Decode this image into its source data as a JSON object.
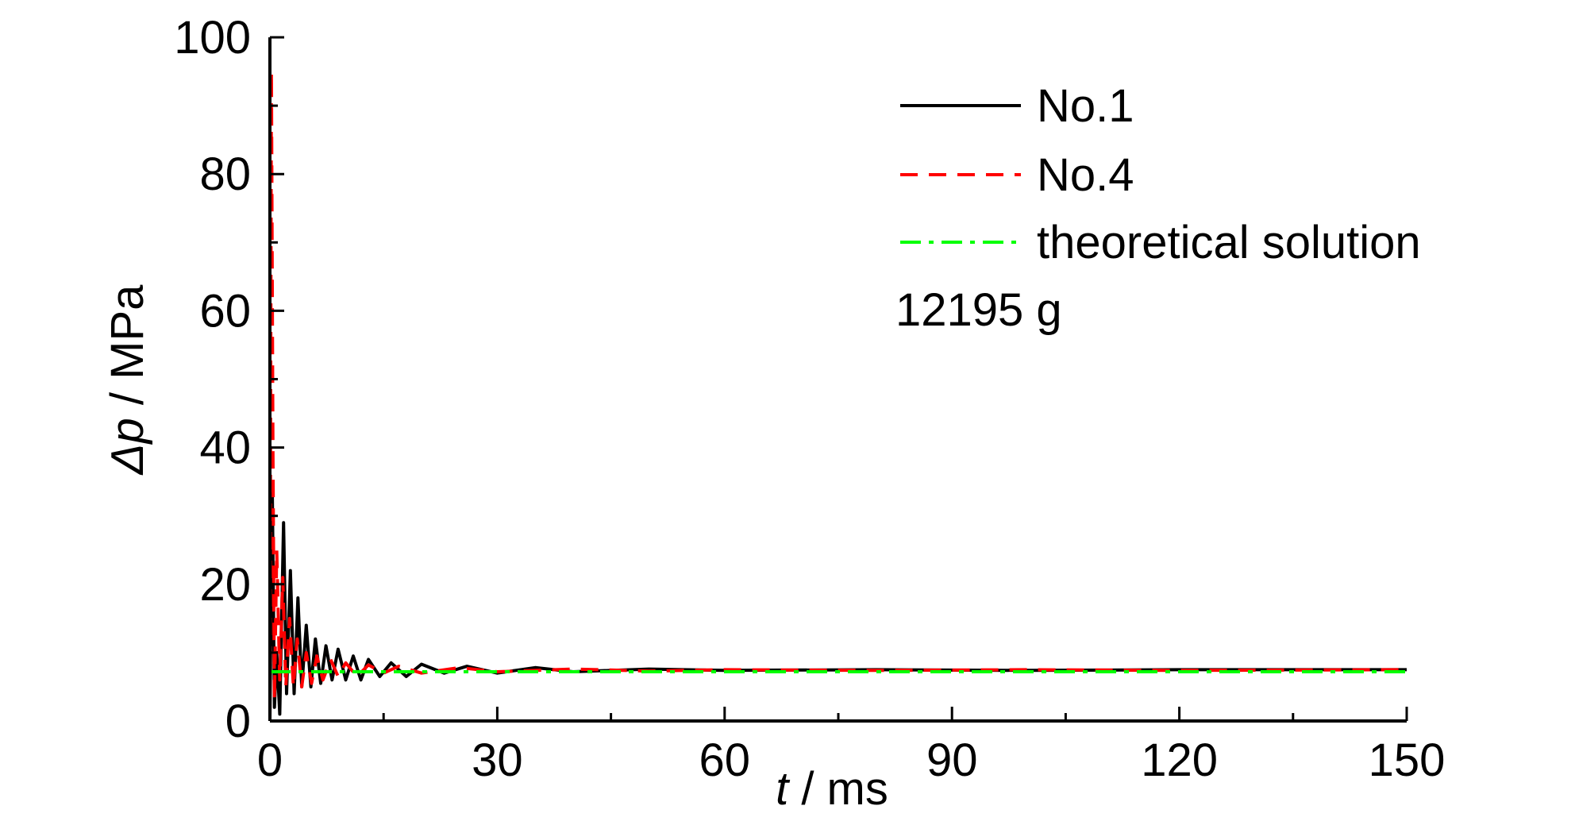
{
  "chart_data": {
    "type": "line",
    "title": "",
    "xlabel_var": "t",
    "xlabel_unit": " / ms",
    "ylabel_var": "Δp",
    "ylabel_unit": " / MPa",
    "xlim": [
      0,
      150
    ],
    "ylim": [
      0,
      100
    ],
    "x_ticks": [
      0,
      30,
      60,
      90,
      120,
      150
    ],
    "y_ticks": [
      0,
      20,
      40,
      60,
      80,
      100
    ],
    "grid": false,
    "legend_position": "top-right",
    "annotation": "12195 g",
    "series": [
      {
        "name": "No.1",
        "color": "#000000",
        "style": "solid",
        "x": [
          0,
          0.3,
          0.6,
          0.9,
          1.3,
          1.8,
          2.2,
          2.7,
          3.2,
          3.7,
          4.2,
          4.8,
          5.4,
          6.0,
          6.7,
          7.4,
          8.2,
          9.0,
          10.0,
          11.0,
          12.0,
          13.0,
          14.5,
          16.0,
          18.0,
          20.0,
          23.0,
          26.0,
          30.0,
          35.0,
          40.0,
          50.0,
          60.0,
          80.0,
          100.0,
          120.0,
          150.0
        ],
        "y": [
          0,
          35,
          2,
          10,
          1,
          29,
          4,
          22,
          4,
          18,
          5,
          14,
          5,
          12,
          5.5,
          11,
          6,
          10.5,
          6,
          9.5,
          6,
          9,
          6.5,
          8.5,
          6.5,
          8.3,
          7,
          8,
          7,
          7.8,
          7.2,
          7.6,
          7.4,
          7.5,
          7.4,
          7.5,
          7.5
        ]
      },
      {
        "name": "No.4",
        "color": "#ff0000",
        "style": "dashed",
        "x": [
          0,
          0.2,
          0.4,
          0.6,
          0.9,
          1.3,
          1.7,
          2.1,
          2.6,
          3.1,
          3.6,
          4.2,
          4.8,
          5.5,
          6.2,
          7.0,
          8.0,
          9.0,
          10.0,
          11.5,
          13.0,
          15.0,
          17.0,
          20.0,
          25.0,
          30.0,
          40.0,
          50.0,
          60.0,
          80.0,
          100.0,
          120.0,
          150.0
        ],
        "y": [
          0,
          95,
          40,
          3,
          25,
          6,
          21,
          5,
          15,
          5,
          12,
          5,
          10,
          5.5,
          9.5,
          6,
          9,
          6.5,
          8.5,
          6.5,
          8.2,
          7,
          8,
          7,
          7.8,
          7.2,
          7.6,
          7.3,
          7.5,
          7.4,
          7.5,
          7.4,
          7.5
        ]
      },
      {
        "name": "theoretical solution",
        "color": "#00ff00",
        "style": "dashdot",
        "x": [
          0,
          150
        ],
        "y": [
          7.2,
          7.2
        ]
      }
    ]
  }
}
